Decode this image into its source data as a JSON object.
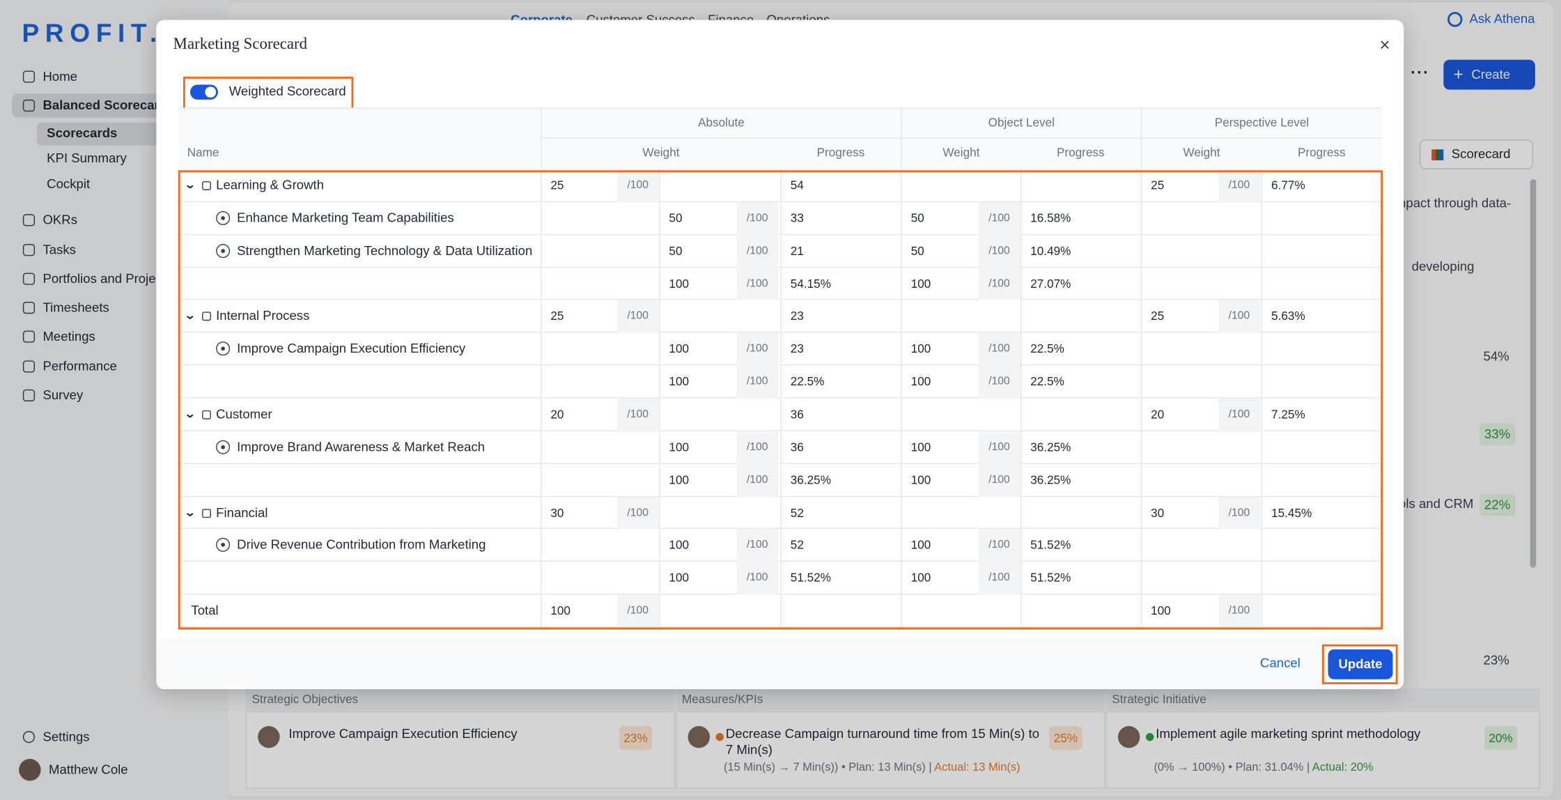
{
  "sidebar": {
    "logo": "PROFIT.",
    "nav": [
      {
        "label": "Home"
      },
      {
        "label": "Balanced Scorecard",
        "children": [
          "Scorecards",
          "KPI Summary",
          "Cockpit"
        ]
      },
      {
        "label": "OKRs"
      },
      {
        "label": "Tasks"
      },
      {
        "label": "Portfolios and Projects"
      },
      {
        "label": "Timesheets"
      },
      {
        "label": "Meetings"
      },
      {
        "label": "Performance"
      },
      {
        "label": "Survey"
      }
    ],
    "settings": "Settings",
    "user": "Matthew Cole"
  },
  "topbar": {
    "tabs": [
      "Corporate",
      "Customer Success",
      "Finance",
      "Operations"
    ],
    "ask": "Ask Athena",
    "create": "Create",
    "view": "Scorecard"
  },
  "background": {
    "snippets": [
      "npact through data-",
      "developing",
      "54%",
      "33%",
      "ols and CRM",
      "22%",
      "23%"
    ],
    "columns": [
      {
        "header": "Strategic Objectives",
        "title": "Improve Campaign Execution Efficiency",
        "badge": "23%"
      },
      {
        "header": "Measures/KPIs",
        "title": "Decrease Campaign turnaround time from 15 Min(s) to 7 Min(s)",
        "badge": "25%",
        "detail": "(15 Min(s) → 7 Min(s)) • Plan: 13 Min(s) |",
        "actual": "Actual: 13 Min(s)"
      },
      {
        "header": "Strategic Initiative",
        "title": "Implement agile marketing sprint methodology",
        "badge": "20%",
        "detail": "(0% → 100%) • Plan: 31.04% |",
        "actual": "Actual: 20%"
      }
    ]
  },
  "modal": {
    "title": "Marketing Scorecard",
    "close": "×",
    "toggle": "Weighted Scorecard",
    "cancel": "Cancel",
    "update": "Update",
    "table": {
      "groups": [
        "Absolute",
        "Object Level",
        "Perspective Level"
      ],
      "name_header": "Name",
      "weight_header": "Weight",
      "progress_header": "Progress",
      "suffix": "/100",
      "perspectives": [
        {
          "name": "Learning & Growth",
          "weight": 25,
          "progress": 54,
          "perspective_weight": 25,
          "perspective_progress": "6.77%",
          "objectives": [
            {
              "name": "Enhance Marketing Team Capabilities",
              "weight": 50,
              "progress": 33,
              "level_weight": 50,
              "level_progress": "16.58%"
            },
            {
              "name": "Strengthen Marketing Technology & Data Utilization",
              "weight": 50,
              "progress": 21,
              "level_weight": 50,
              "level_progress": "10.49%"
            }
          ],
          "subtotal": {
            "weight": 100,
            "progress": "54.15%",
            "level_weight": 100,
            "level_progress": "27.07%"
          }
        },
        {
          "name": "Internal Process",
          "weight": 25,
          "progress": 23,
          "perspective_weight": 25,
          "perspective_progress": "5.63%",
          "objectives": [
            {
              "name": "Improve Campaign Execution Efficiency",
              "weight": 100,
              "progress": 23,
              "level_weight": 100,
              "level_progress": "22.5%"
            }
          ],
          "subtotal": {
            "weight": 100,
            "progress": "22.5%",
            "level_weight": 100,
            "level_progress": "22.5%"
          }
        },
        {
          "name": "Customer",
          "weight": 20,
          "progress": 36,
          "perspective_weight": 20,
          "perspective_progress": "7.25%",
          "objectives": [
            {
              "name": "Improve Brand Awareness & Market Reach",
              "weight": 100,
              "progress": 36,
              "level_weight": 100,
              "level_progress": "36.25%"
            }
          ],
          "subtotal": {
            "weight": 100,
            "progress": "36.25%",
            "level_weight": 100,
            "level_progress": "36.25%"
          }
        },
        {
          "name": "Financial",
          "weight": 30,
          "progress": 52,
          "perspective_weight": 30,
          "perspective_progress": "15.45%",
          "objectives": [
            {
              "name": "Drive Revenue Contribution from Marketing",
              "weight": 100,
              "progress": 52,
              "level_weight": 100,
              "level_progress": "51.52%"
            }
          ],
          "subtotal": {
            "weight": 100,
            "progress": "51.52%",
            "level_weight": 100,
            "level_progress": "51.52%"
          }
        }
      ],
      "total": {
        "label": "Total",
        "weight": 100,
        "perspective_weight": 100
      }
    }
  }
}
